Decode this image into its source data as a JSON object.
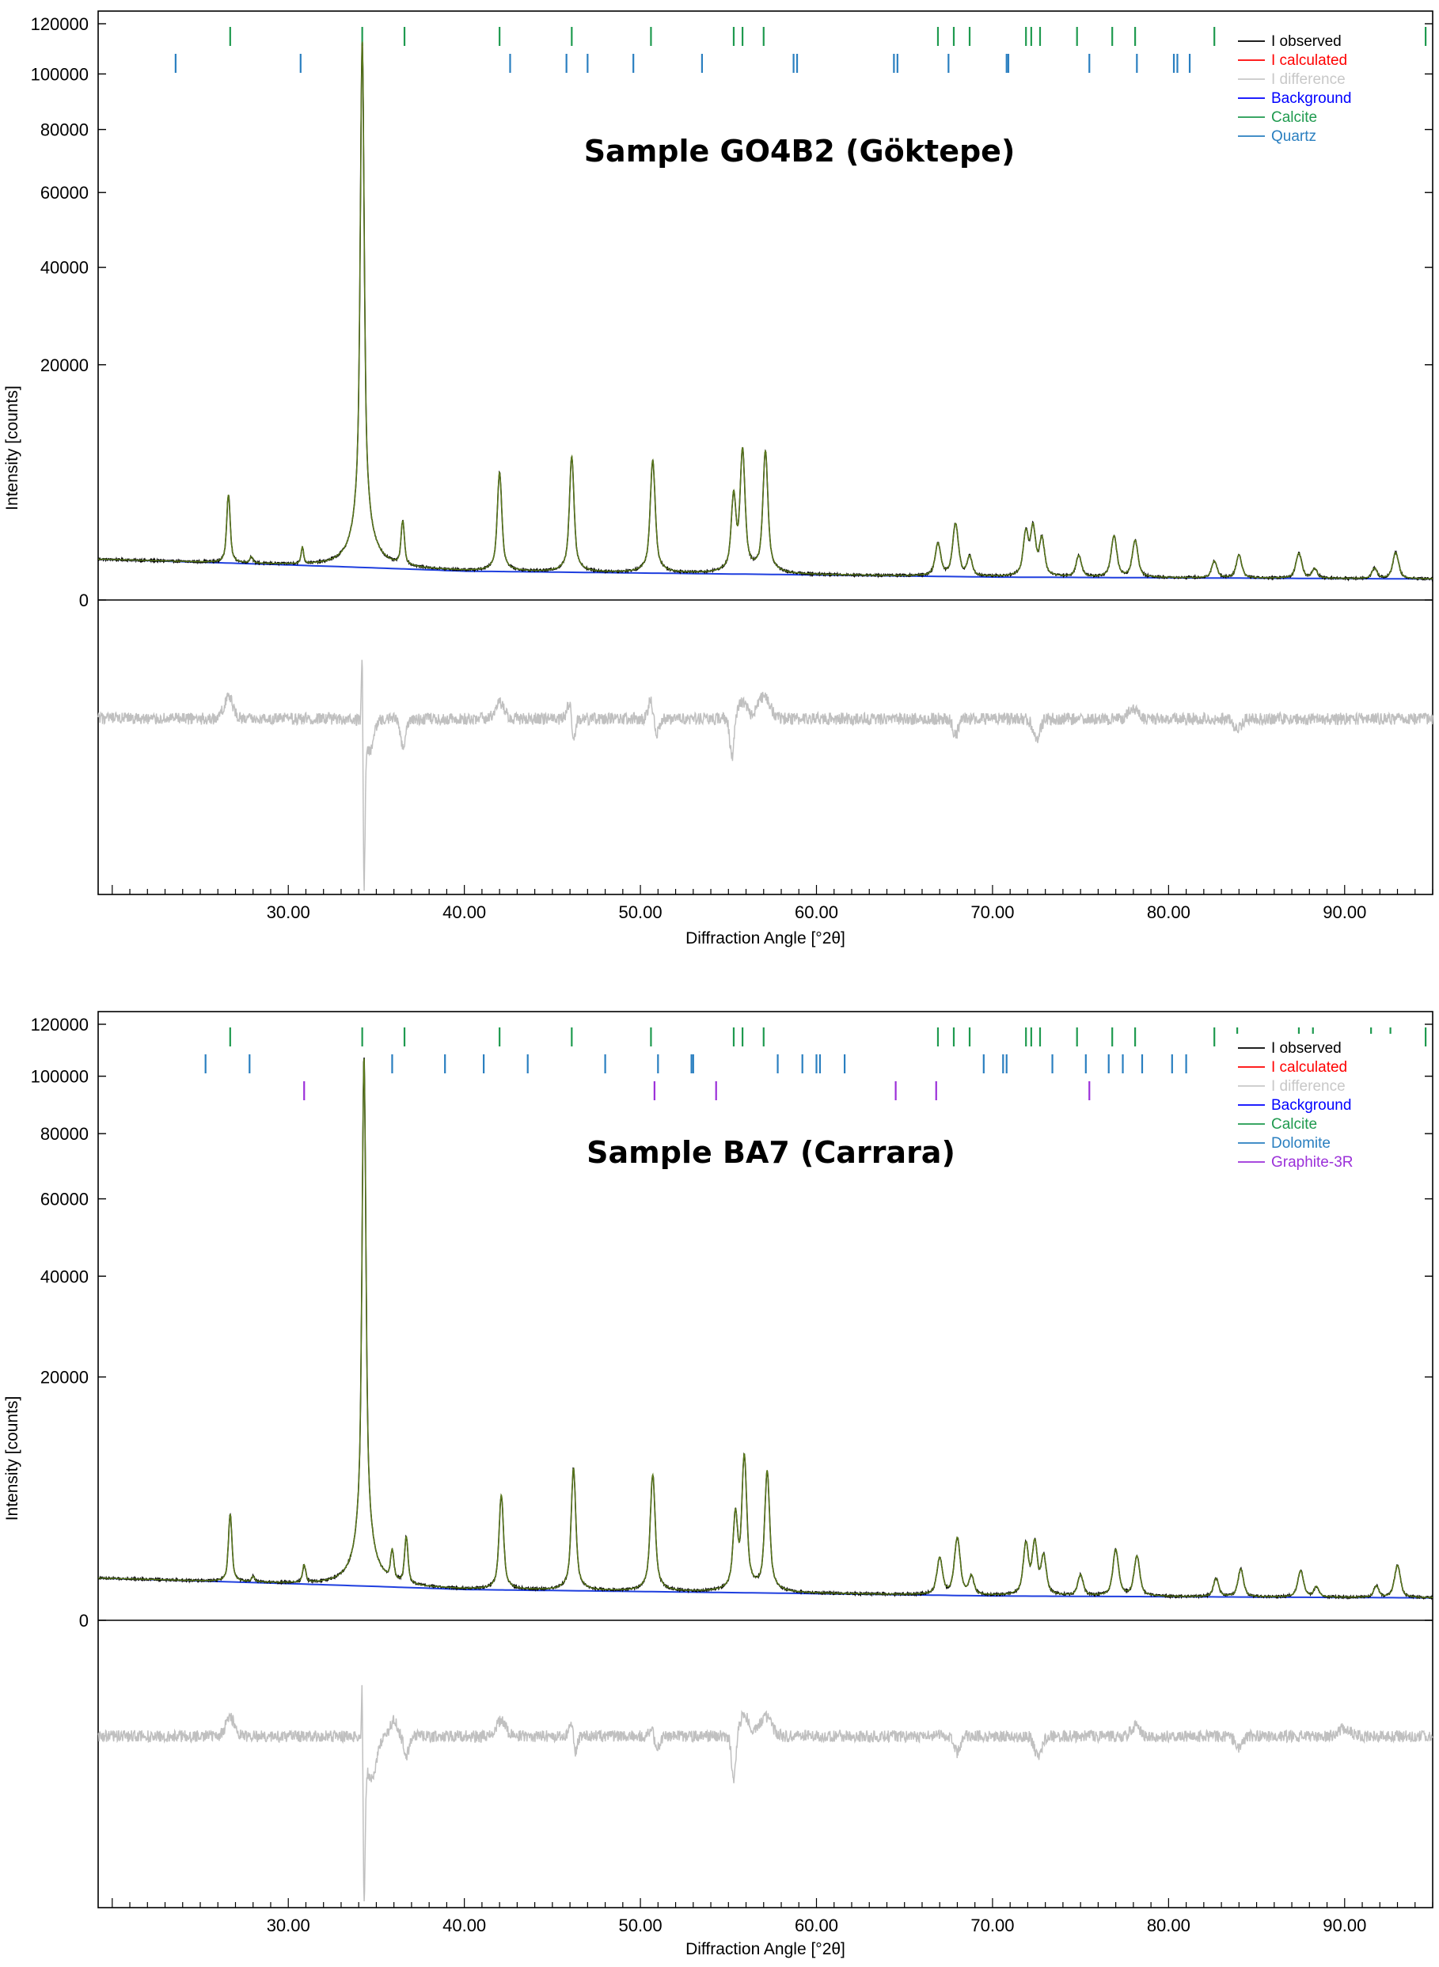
{
  "chart_data": [
    {
      "type": "line",
      "title": "Sample GO4B2 (Göktepe)",
      "xlabel": "Diffraction Angle [°2θ]",
      "ylabel": "Intensity [counts]",
      "xlim": [
        19.2,
        95.0
      ],
      "x_ticks": [
        "30.00",
        "40.00",
        "50.00",
        "60.00",
        "70.00",
        "80.00",
        "90.00"
      ],
      "x_tick_values": [
        30,
        40,
        50,
        60,
        70,
        80,
        90
      ],
      "y_scale": "square-root",
      "y_ticks": [
        "0",
        "20000",
        "40000",
        "60000",
        "80000",
        "100000",
        "120000"
      ],
      "y_tick_values": [
        0,
        20000,
        40000,
        60000,
        80000,
        100000,
        120000
      ],
      "legend_position": "top-right",
      "legend": [
        {
          "name": "I observed",
          "color": "#000000"
        },
        {
          "name": "I calculated",
          "color": "#ff0000"
        },
        {
          "name": "I difference",
          "color": "#c8c8c8"
        },
        {
          "name": "Background",
          "color": "#0000ff"
        },
        {
          "name": "Calcite",
          "color": "#1f9a4f"
        },
        {
          "name": "Quartz",
          "color": "#2a7fc0"
        }
      ],
      "series_colors": {
        "observed": "#000000",
        "calculated": "#5a7a1a",
        "background": "#1f3fdf",
        "difference": "#c0c0c0"
      },
      "background": [
        [
          19.2,
          600
        ],
        [
          40,
          300
        ],
        [
          70,
          190
        ],
        [
          95,
          160
        ]
      ],
      "peaks": [
        {
          "x": 26.6,
          "y": 3500,
          "w": 0.1
        },
        {
          "x": 27.9,
          "y": 180,
          "w": 0.1
        },
        {
          "x": 30.8,
          "y": 530,
          "w": 0.08
        },
        {
          "x": 34.2,
          "y": 113000,
          "w": 0.1
        },
        {
          "x": 36.5,
          "y": 1800,
          "w": 0.1
        },
        {
          "x": 42.0,
          "y": 5600,
          "w": 0.12
        },
        {
          "x": 46.1,
          "y": 7200,
          "w": 0.12
        },
        {
          "x": 50.7,
          "y": 6800,
          "w": 0.13
        },
        {
          "x": 55.3,
          "y": 3800,
          "w": 0.13
        },
        {
          "x": 55.8,
          "y": 8000,
          "w": 0.13
        },
        {
          "x": 57.1,
          "y": 7800,
          "w": 0.13
        },
        {
          "x": 66.9,
          "y": 950,
          "w": 0.16
        },
        {
          "x": 67.9,
          "y": 1900,
          "w": 0.16
        },
        {
          "x": 68.7,
          "y": 480,
          "w": 0.15
        },
        {
          "x": 71.9,
          "y": 1500,
          "w": 0.15
        },
        {
          "x": 72.3,
          "y": 1800,
          "w": 0.15
        },
        {
          "x": 72.8,
          "y": 1200,
          "w": 0.15
        },
        {
          "x": 74.9,
          "y": 520,
          "w": 0.16
        },
        {
          "x": 76.9,
          "y": 1300,
          "w": 0.16
        },
        {
          "x": 78.1,
          "y": 1100,
          "w": 0.16
        },
        {
          "x": 82.6,
          "y": 370,
          "w": 0.16
        },
        {
          "x": 84.0,
          "y": 560,
          "w": 0.16
        },
        {
          "x": 87.4,
          "y": 620,
          "w": 0.17
        },
        {
          "x": 88.3,
          "y": 180,
          "w": 0.16
        },
        {
          "x": 91.7,
          "y": 200,
          "w": 0.16
        },
        {
          "x": 92.9,
          "y": 650,
          "w": 0.17
        }
      ],
      "reflection_markers": [
        {
          "phase": "Calcite",
          "color": "#1f9a4f",
          "x": [
            26.7,
            34.2,
            36.6,
            42.0,
            46.1,
            50.6,
            55.3,
            55.8,
            57.0,
            66.9,
            67.8,
            68.7,
            71.9,
            72.2,
            72.7,
            74.8,
            76.8,
            78.1,
            82.6,
            83.9,
            87.4,
            88.2,
            91.5,
            92.6,
            94.6
          ]
        },
        {
          "phase": "Quartz",
          "color": "#2a7fc0",
          "x": [
            23.6,
            30.7,
            42.6,
            45.8,
            47.0,
            49.6,
            53.5,
            58.7,
            58.9,
            64.4,
            64.6,
            67.5,
            70.8,
            70.9,
            75.5,
            78.2,
            80.3,
            80.5,
            81.2
          ]
        }
      ],
      "difference": {
        "baseline": 0,
        "range": [
          -3000,
          2000
        ],
        "features": [
          {
            "x": 26.6,
            "a": 400,
            "w": 0.25
          },
          {
            "x": 34.2,
            "a": 1900,
            "w": 0.04
          },
          {
            "x": 34.3,
            "a": -2800,
            "w": 0.06
          },
          {
            "x": 34.6,
            "a": -600,
            "w": 0.25
          },
          {
            "x": 36.5,
            "a": -500,
            "w": 0.15
          },
          {
            "x": 42.0,
            "a": 300,
            "w": 0.25
          },
          {
            "x": 46.0,
            "a": 300,
            "w": 0.15
          },
          {
            "x": 46.2,
            "a": -500,
            "w": 0.1
          },
          {
            "x": 50.6,
            "a": 350,
            "w": 0.15
          },
          {
            "x": 50.9,
            "a": -300,
            "w": 0.15
          },
          {
            "x": 55.2,
            "a": -700,
            "w": 0.12
          },
          {
            "x": 55.8,
            "a": 300,
            "w": 0.25
          },
          {
            "x": 57.0,
            "a": 400,
            "w": 0.35
          },
          {
            "x": 67.9,
            "a": -300,
            "w": 0.15
          },
          {
            "x": 72.5,
            "a": -350,
            "w": 0.2
          },
          {
            "x": 78.0,
            "a": 200,
            "w": 0.25
          },
          {
            "x": 83.9,
            "a": -200,
            "w": 0.2
          }
        ]
      }
    },
    {
      "type": "line",
      "title": "Sample BA7 (Carrara)",
      "xlabel": "Diffraction Angle [°2θ]",
      "ylabel": "Intensity [counts]",
      "xlim": [
        19.2,
        95.0
      ],
      "x_ticks": [
        "30.00",
        "40.00",
        "50.00",
        "60.00",
        "70.00",
        "80.00",
        "90.00"
      ],
      "x_tick_values": [
        30,
        40,
        50,
        60,
        70,
        80,
        90
      ],
      "y_scale": "square-root",
      "y_ticks": [
        "0",
        "20000",
        "40000",
        "60000",
        "80000",
        "100000",
        "120000"
      ],
      "y_tick_values": [
        0,
        20000,
        40000,
        60000,
        80000,
        100000,
        120000
      ],
      "legend_position": "top-right",
      "legend": [
        {
          "name": "I observed",
          "color": "#000000"
        },
        {
          "name": "I calculated",
          "color": "#ff0000"
        },
        {
          "name": "I difference",
          "color": "#c8c8c8"
        },
        {
          "name": "Background",
          "color": "#0000ff"
        },
        {
          "name": "Calcite",
          "color": "#1f9a4f"
        },
        {
          "name": "Dolomite",
          "color": "#2a7fc0"
        },
        {
          "name": "Graphite-3R",
          "color": "#9b30d9"
        }
      ],
      "series_colors": {
        "observed": "#000000",
        "calculated": "#5a7a1a",
        "background": "#1f3fdf",
        "difference": "#c0c0c0"
      },
      "background": [
        [
          19.2,
          600
        ],
        [
          40,
          320
        ],
        [
          70,
          200
        ],
        [
          95,
          170
        ]
      ],
      "peaks": [
        {
          "x": 26.7,
          "y": 3300,
          "w": 0.1
        },
        {
          "x": 28.0,
          "y": 150,
          "w": 0.1
        },
        {
          "x": 30.9,
          "y": 550,
          "w": 0.1
        },
        {
          "x": 34.3,
          "y": 107000,
          "w": 0.1
        },
        {
          "x": 35.9,
          "y": 1100,
          "w": 0.1
        },
        {
          "x": 36.7,
          "y": 1900,
          "w": 0.1
        },
        {
          "x": 42.1,
          "y": 5000,
          "w": 0.12
        },
        {
          "x": 46.2,
          "y": 7500,
          "w": 0.12
        },
        {
          "x": 50.7,
          "y": 6900,
          "w": 0.13
        },
        {
          "x": 55.4,
          "y": 3600,
          "w": 0.13
        },
        {
          "x": 55.9,
          "y": 9000,
          "w": 0.13
        },
        {
          "x": 57.2,
          "y": 7300,
          "w": 0.13
        },
        {
          "x": 67.0,
          "y": 1100,
          "w": 0.16
        },
        {
          "x": 68.0,
          "y": 2100,
          "w": 0.16
        },
        {
          "x": 68.8,
          "y": 450,
          "w": 0.15
        },
        {
          "x": 71.9,
          "y": 1800,
          "w": 0.15
        },
        {
          "x": 72.4,
          "y": 1900,
          "w": 0.15
        },
        {
          "x": 72.9,
          "y": 1200,
          "w": 0.15
        },
        {
          "x": 75.0,
          "y": 500,
          "w": 0.16
        },
        {
          "x": 77.0,
          "y": 1500,
          "w": 0.16
        },
        {
          "x": 78.2,
          "y": 1200,
          "w": 0.16
        },
        {
          "x": 82.7,
          "y": 400,
          "w": 0.16
        },
        {
          "x": 84.1,
          "y": 700,
          "w": 0.16
        },
        {
          "x": 87.5,
          "y": 650,
          "w": 0.17
        },
        {
          "x": 88.4,
          "y": 200,
          "w": 0.16
        },
        {
          "x": 91.8,
          "y": 220,
          "w": 0.16
        },
        {
          "x": 93.0,
          "y": 850,
          "w": 0.17
        }
      ],
      "reflection_markers": [
        {
          "phase": "Calcite",
          "color": "#1f9a4f",
          "x": [
            26.7,
            34.2,
            36.6,
            42.0,
            46.1,
            50.6,
            55.3,
            55.8,
            57.0,
            66.9,
            67.8,
            68.7,
            71.9,
            72.2,
            72.7,
            74.8,
            76.8,
            78.1,
            82.6,
            83.9,
            87.4,
            88.2,
            91.5,
            92.6,
            94.6
          ]
        },
        {
          "phase": "Dolomite",
          "color": "#2a7fc0",
          "x": [
            25.3,
            27.8,
            35.9,
            38.9,
            41.1,
            43.6,
            48.0,
            51.0,
            52.9,
            53.0,
            57.8,
            59.2,
            60.0,
            60.2,
            61.6,
            69.5,
            70.6,
            70.8,
            73.4,
            75.3,
            76.6,
            77.4,
            78.5,
            80.2,
            81.0
          ]
        },
        {
          "phase": "Graphite-3R",
          "color": "#9b30d9",
          "x": [
            30.9,
            50.8,
            54.3,
            64.5,
            66.8,
            75.5
          ]
        }
      ],
      "difference": {
        "baseline": 0,
        "range": [
          -3000,
          2000
        ],
        "features": [
          {
            "x": 26.7,
            "a": 350,
            "w": 0.25
          },
          {
            "x": 34.2,
            "a": 1900,
            "w": 0.04
          },
          {
            "x": 34.3,
            "a": -2700,
            "w": 0.07
          },
          {
            "x": 34.7,
            "a": -800,
            "w": 0.3
          },
          {
            "x": 36.0,
            "a": 300,
            "w": 0.2
          },
          {
            "x": 36.7,
            "a": -350,
            "w": 0.15
          },
          {
            "x": 42.1,
            "a": 300,
            "w": 0.25
          },
          {
            "x": 46.1,
            "a": 250,
            "w": 0.15
          },
          {
            "x": 46.3,
            "a": -400,
            "w": 0.1
          },
          {
            "x": 50.7,
            "a": 250,
            "w": 0.15
          },
          {
            "x": 50.9,
            "a": -350,
            "w": 0.15
          },
          {
            "x": 55.3,
            "a": -800,
            "w": 0.12
          },
          {
            "x": 55.9,
            "a": 400,
            "w": 0.25
          },
          {
            "x": 57.1,
            "a": 350,
            "w": 0.35
          },
          {
            "x": 68.0,
            "a": -300,
            "w": 0.15
          },
          {
            "x": 72.6,
            "a": -400,
            "w": 0.2
          },
          {
            "x": 78.1,
            "a": 180,
            "w": 0.25
          },
          {
            "x": 84.0,
            "a": -220,
            "w": 0.2
          },
          {
            "x": 90.0,
            "a": 150,
            "w": 0.3
          }
        ]
      }
    }
  ]
}
